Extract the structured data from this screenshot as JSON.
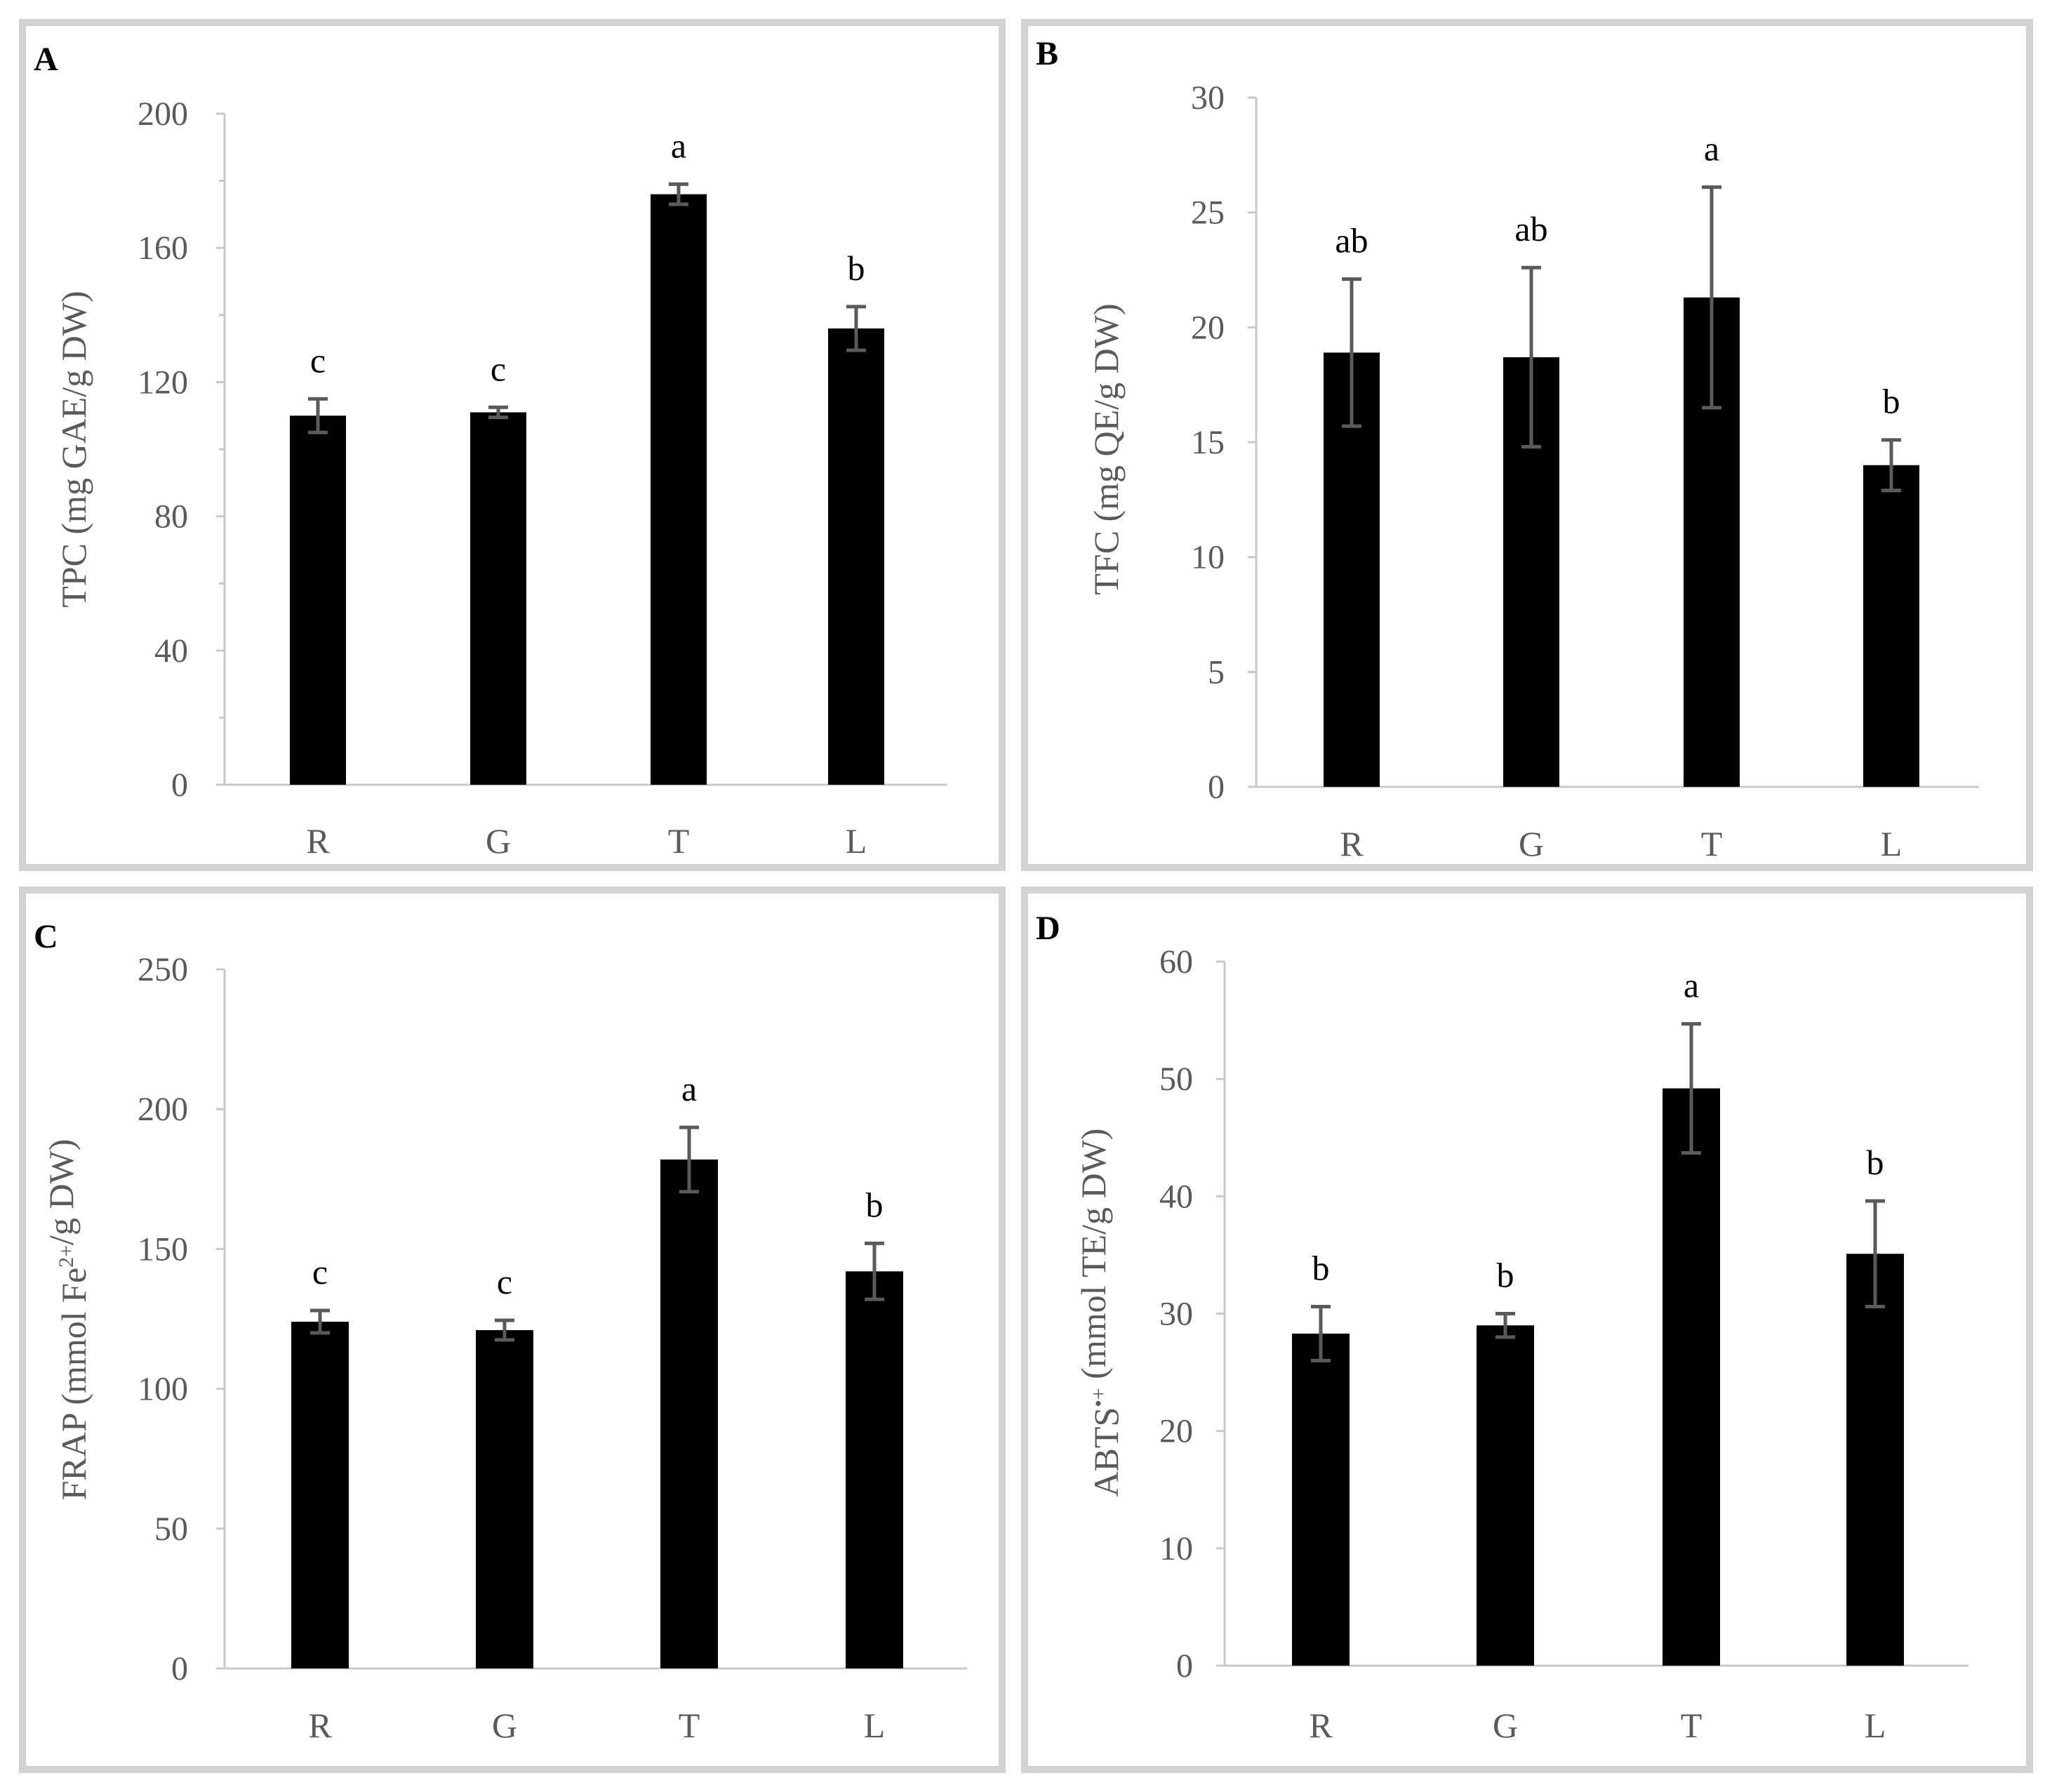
{
  "figure_title": "",
  "colors": {
    "bar": "#000000",
    "error_bar": "#5a5a5a",
    "axis": "#c8c8c8",
    "text": "#5a5a5a",
    "border": "#d2d2d2"
  },
  "chart_data": [
    {
      "panel": "A",
      "type": "bar",
      "categories": [
        "R",
        "G",
        "T",
        "L"
      ],
      "values": [
        110,
        111,
        176,
        136
      ],
      "errors": [
        5,
        1.5,
        3,
        6.5
      ],
      "significance": [
        "c",
        "c",
        "a",
        "b"
      ],
      "title": "",
      "xlabel": "",
      "ylabel": {
        "main": "TPC (mg GAE/g DW)",
        "parts": [
          {
            "text": "TPC (mg GAE/g DW)",
            "sup": false
          }
        ]
      },
      "ylim": [
        0,
        200
      ],
      "yticks": [
        0,
        40,
        80,
        120,
        160,
        200
      ],
      "minor_ticks": true,
      "grid": false
    },
    {
      "panel": "B",
      "type": "bar",
      "categories": [
        "R",
        "G",
        "T",
        "L"
      ],
      "values": [
        18.9,
        18.7,
        21.3,
        14.0
      ],
      "errors": [
        3.2,
        3.9,
        4.8,
        1.1
      ],
      "significance": [
        "ab",
        "ab",
        "a",
        "b"
      ],
      "title": "",
      "xlabel": "",
      "ylabel": {
        "main": "TFC (mg QE/g DW)",
        "parts": [
          {
            "text": "TFC (mg QE/g DW)",
            "sup": false
          }
        ]
      },
      "ylim": [
        0,
        30
      ],
      "yticks": [
        0,
        5,
        10,
        15,
        20,
        25,
        30
      ],
      "minor_ticks": false,
      "grid": false
    },
    {
      "panel": "C",
      "type": "bar",
      "categories": [
        "R",
        "G",
        "T",
        "L"
      ],
      "values": [
        124,
        121,
        182,
        142
      ],
      "errors": [
        4,
        3.5,
        11.5,
        10
      ],
      "significance": [
        "c",
        "c",
        "a",
        "b"
      ],
      "title": "",
      "xlabel": "",
      "ylabel": {
        "main": "FRAP (mmol Fe2+/g DW)",
        "parts": [
          {
            "text": "FRAP (mmol Fe",
            "sup": false
          },
          {
            "text": "2+",
            "sup": true
          },
          {
            "text": "/g DW)",
            "sup": false
          }
        ]
      },
      "ylim": [
        0,
        250
      ],
      "yticks": [
        0,
        50,
        100,
        150,
        200,
        250
      ],
      "minor_ticks": false,
      "grid": false
    },
    {
      "panel": "D",
      "type": "bar",
      "categories": [
        "R",
        "G",
        "T",
        "L"
      ],
      "values": [
        28.3,
        29.0,
        49.2,
        35.1
      ],
      "errors": [
        2.3,
        1.0,
        5.5,
        4.5
      ],
      "significance": [
        "b",
        "b",
        "a",
        "b"
      ],
      "title": "",
      "xlabel": "",
      "ylabel": {
        "main": "ABTS•+ (mmol TE/g DW)",
        "parts": [
          {
            "text": "ABTS",
            "sup": false
          },
          {
            "text": "•+",
            "sup": true
          },
          {
            "text": " (mmol TE/g DW)",
            "sup": false
          }
        ]
      },
      "ylim": [
        0,
        60
      ],
      "yticks": [
        0,
        10,
        20,
        30,
        40,
        50,
        60
      ],
      "minor_ticks": false,
      "grid": false
    }
  ]
}
